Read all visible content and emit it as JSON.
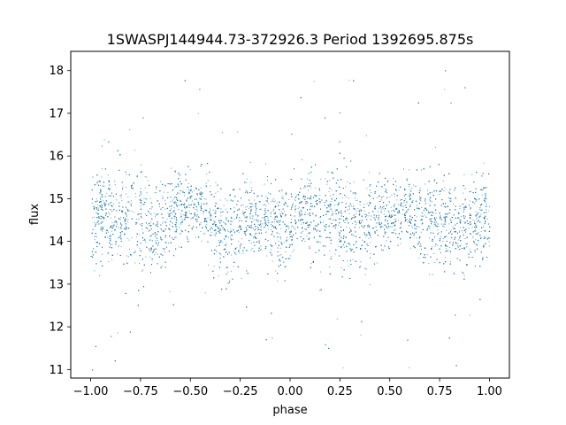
{
  "chart_data": {
    "type": "scatter",
    "title": "1SWASPJ144944.73-372926.3 Period 1392695.875s",
    "xlabel": "phase",
    "ylabel": "flux",
    "xlim": [
      -1.1,
      1.1
    ],
    "ylim": [
      10.8,
      18.45
    ],
    "x_ticks": [
      -1.0,
      -0.75,
      -0.5,
      -0.25,
      0.0,
      0.25,
      0.5,
      0.75,
      1.0
    ],
    "x_tick_labels": [
      "−1.00",
      "−0.75",
      "−0.50",
      "−0.25",
      "0.00",
      "0.25",
      "0.50",
      "0.75",
      "1.00"
    ],
    "y_ticks": [
      11,
      12,
      13,
      14,
      15,
      16,
      17,
      18
    ],
    "y_tick_labels": [
      "11",
      "12",
      "13",
      "14",
      "15",
      "16",
      "17",
      "18"
    ],
    "grid": false,
    "marker_color": "#1f77b4",
    "series": [
      {
        "points_summary": "dense light-curve cloud of thousands of points over phase -1 to 1",
        "x": [
          -0.98,
          -0.95,
          -0.9,
          -0.86,
          -0.82,
          -0.78,
          -0.74,
          -0.7,
          -0.65,
          -0.6,
          -0.55,
          -0.5,
          -0.45,
          -0.4,
          -0.35,
          -0.3,
          -0.25,
          -0.2,
          -0.15,
          -0.1,
          -0.05,
          0.0,
          0.02,
          0.05,
          0.1,
          0.15,
          0.2,
          0.25,
          0.3,
          0.35,
          0.4,
          0.45,
          0.5,
          0.55,
          0.6,
          0.65,
          0.7,
          0.75,
          0.8,
          0.85,
          0.9,
          0.95,
          0.98
        ],
        "y": [
          14.6,
          14.8,
          14.5,
          14.4,
          14.7,
          14.6,
          14.5,
          14.3,
          14.2,
          14.6,
          14.7,
          14.7,
          14.8,
          14.6,
          14.3,
          14.2,
          14.4,
          14.5,
          14.6,
          14.5,
          14.3,
          14.4,
          14.6,
          14.7,
          14.6,
          14.5,
          14.6,
          14.6,
          14.5,
          14.4,
          14.5,
          14.7,
          14.7,
          14.8,
          14.7,
          14.4,
          14.5,
          14.5,
          14.3,
          14.2,
          14.4,
          14.5,
          14.6
        ],
        "spread": [
          0.7,
          0.7,
          0.65,
          0.7,
          0.75,
          0.8,
          0.75,
          0.75,
          0.7,
          0.6,
          0.55,
          0.5,
          0.5,
          0.55,
          0.7,
          0.75,
          0.7,
          0.65,
          0.6,
          0.65,
          0.7,
          0.7,
          0.7,
          0.7,
          0.65,
          0.7,
          0.75,
          0.8,
          0.75,
          0.75,
          0.7,
          0.6,
          0.55,
          0.5,
          0.55,
          0.7,
          0.75,
          0.7,
          0.7,
          0.7,
          0.75,
          0.75,
          0.7
        ]
      }
    ]
  }
}
